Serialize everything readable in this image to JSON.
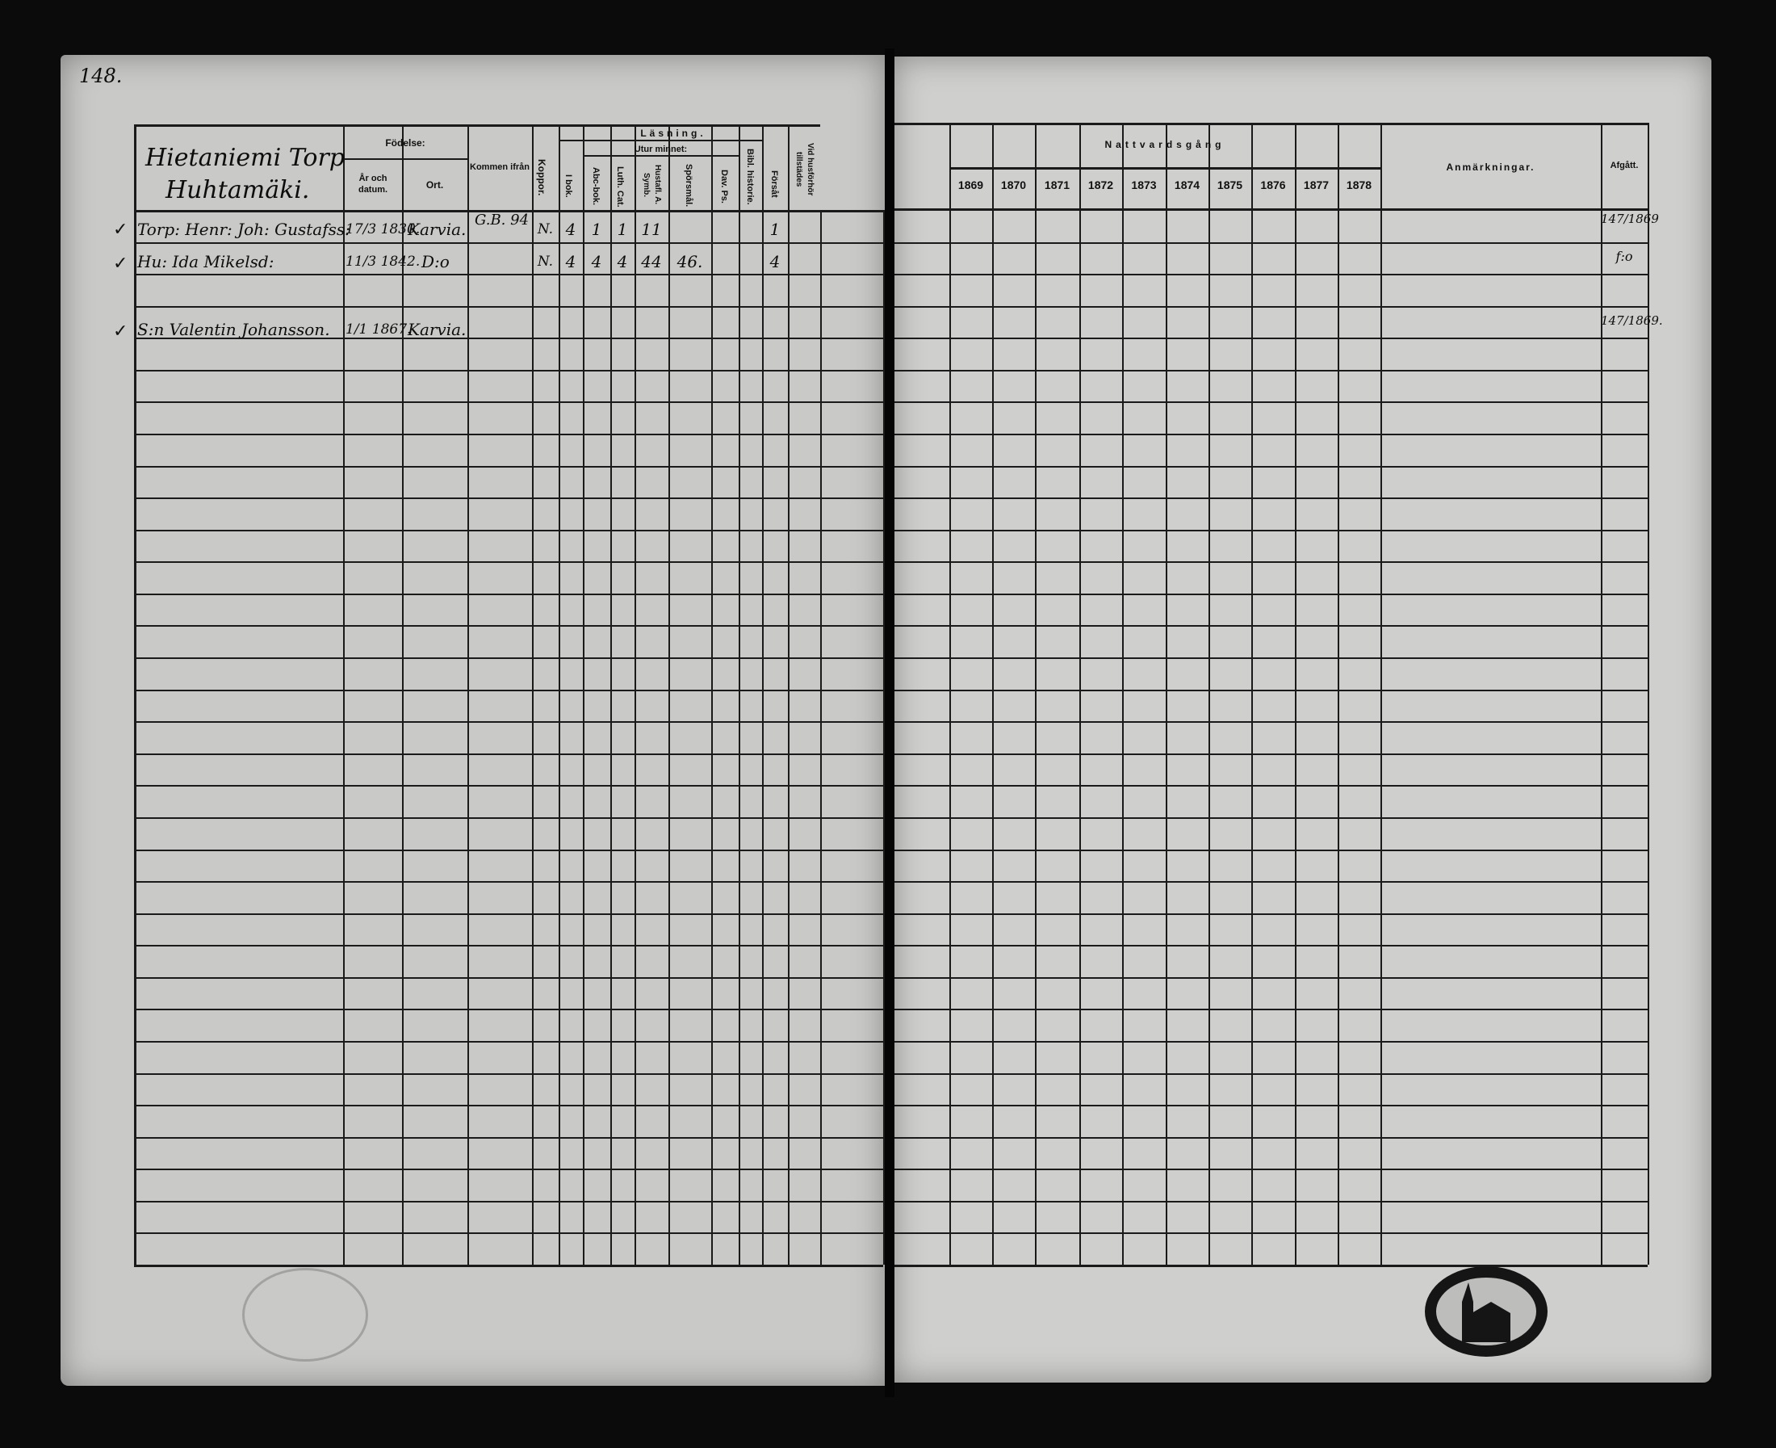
{
  "page_number": "148.",
  "left_page": {
    "title_line1": "Hietaniemi Torp",
    "title_line2": "Huhtamäki.",
    "headers": {
      "fodelse": "Födelse:",
      "ar_och_datum": "År och datum.",
      "ort": "Ort.",
      "kommen_ifran": "Kommen ifrån",
      "koppor": "Koppor.",
      "lasning": "Läsning.",
      "i_bok": "I bok.",
      "utur_minnet": "Utur minnet:",
      "abc_bok": "Abc-bok.",
      "luth_cat": "Luth. Cat.",
      "hustafl": "Hustafl. A. Symb.",
      "sporsmal": "Spörsmål.",
      "dav_ps": "Dav. Ps.",
      "bibl_historie": "Bibl. historie.",
      "forsatt": "Försåt",
      "vid_husforhor": "Vid husförhör tillstädes"
    },
    "rows": [
      {
        "check": "✓",
        "name": "Torp: Henr: Joh: Gustafss:",
        "date": "17/3 1830.",
        "place": "Karvia.",
        "from": "G.B. 94",
        "koppor": "N.",
        "i_bok": "4",
        "abc": "1",
        "luth": "1",
        "hustafl": "11",
        "sporsmal": "",
        "forsatt": "1"
      },
      {
        "check": "✓",
        "name": "Hu: Ida Mikelsd:",
        "date": "11/3 1842.",
        "place": "D:o",
        "from": "",
        "koppor": "N.",
        "i_bok": "4",
        "abc": "4",
        "luth": "4",
        "hustafl": "44",
        "sporsmal": "46.",
        "forsatt": "4"
      },
      {
        "check": "✓",
        "name": "S:n Valentin Johansson.",
        "date": "1/1 1867.",
        "place": "Karvia.",
        "from": "",
        "koppor": "",
        "i_bok": "",
        "abc": "",
        "luth": "",
        "hustafl": "",
        "sporsmal": "",
        "forsatt": ""
      }
    ]
  },
  "right_page": {
    "nattvardsgang": "Nattvardsgång",
    "years": [
      "1869",
      "1870",
      "1871",
      "1872",
      "1873",
      "1874",
      "1875",
      "1876",
      "1877",
      "1878"
    ],
    "anmarkningar": "Anmärkningar.",
    "afgatt": "Afgått.",
    "afgatt_entries": [
      "147/1869",
      "f:o",
      "147/1869."
    ]
  },
  "colors": {
    "paper": "#c9c9c7",
    "ink": "#111111",
    "background": "#0b0b0b"
  }
}
